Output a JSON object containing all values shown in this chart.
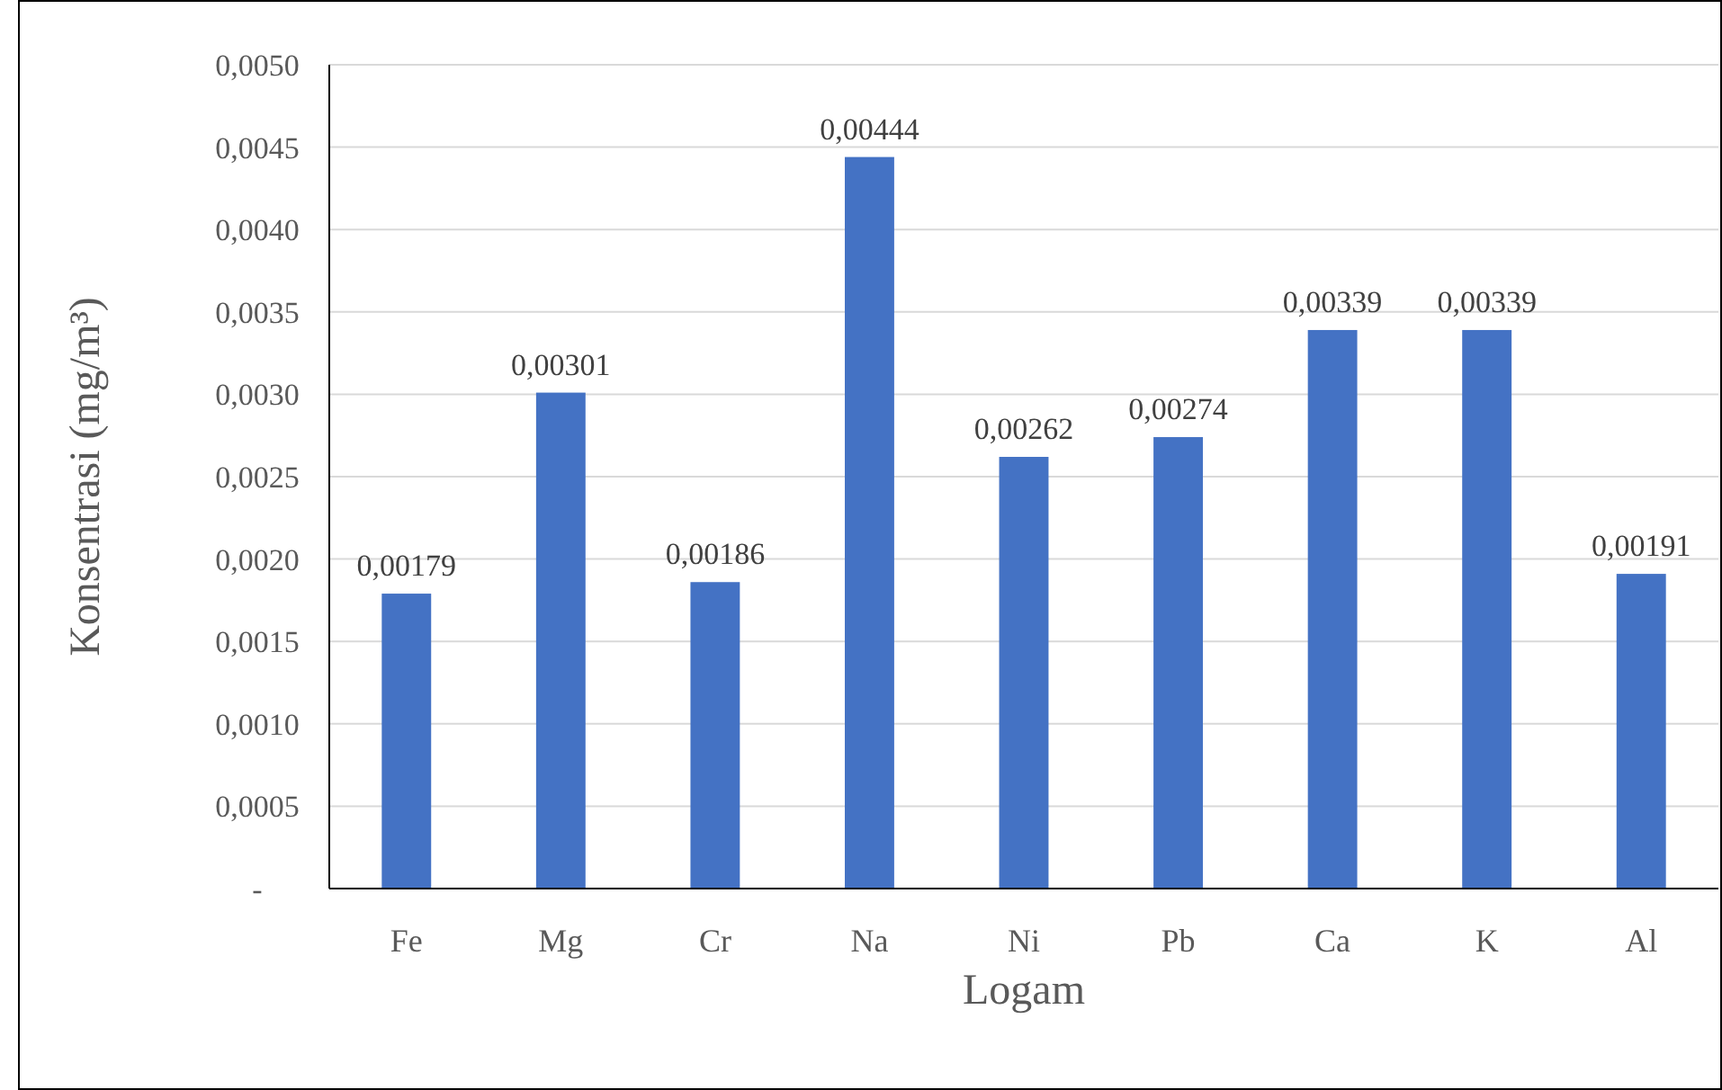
{
  "chart_data": {
    "type": "bar",
    "xlabel": "Logam",
    "ylabel": "Konsentrasi (mg/m³)",
    "categories": [
      "Fe",
      "Mg",
      "Cr",
      "Na",
      "Ni",
      "Pb",
      "Ca",
      "K",
      "Al"
    ],
    "values": [
      0.00179,
      0.00301,
      0.00186,
      0.00444,
      0.00262,
      0.00274,
      0.00339,
      0.00339,
      0.00191
    ],
    "value_labels": [
      "0,00179",
      "0,00301",
      "0,00186",
      "0,00444",
      "0,00262",
      "0,00274",
      "0,00339",
      "0,00339",
      "0,00191"
    ],
    "color": "#4472c4",
    "ylim": [
      0,
      0.005
    ],
    "yticks": [
      {
        "value": 0,
        "label": "-"
      },
      {
        "value": 0.0005,
        "label": "0,0005"
      },
      {
        "value": 0.001,
        "label": "0,0010"
      },
      {
        "value": 0.0015,
        "label": "0,0015"
      },
      {
        "value": 0.002,
        "label": "0,0020"
      },
      {
        "value": 0.0025,
        "label": "0,0025"
      },
      {
        "value": 0.003,
        "label": "0,0030"
      },
      {
        "value": 0.0035,
        "label": "0,0035"
      },
      {
        "value": 0.004,
        "label": "0,0040"
      },
      {
        "value": 0.0045,
        "label": "0,0045"
      },
      {
        "value": 0.005,
        "label": "0,0050"
      }
    ],
    "grid": "y"
  }
}
